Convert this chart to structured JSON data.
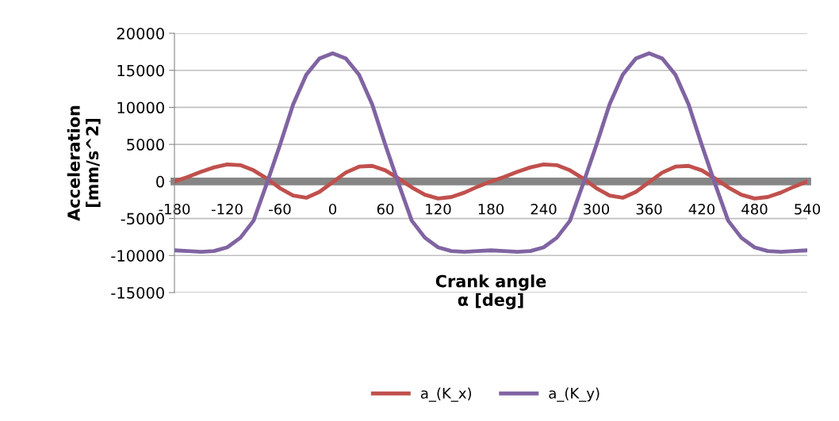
{
  "chart_data": {
    "type": "line",
    "xlabel": "Crank angle\nα [deg]",
    "ylabel": "Acceleration\n[mm/s^2]",
    "x": [
      -180,
      -165,
      -150,
      -135,
      -120,
      -105,
      -90,
      -75,
      -60,
      -45,
      -30,
      -15,
      0,
      15,
      30,
      45,
      60,
      75,
      90,
      105,
      120,
      135,
      150,
      165,
      180,
      195,
      210,
      225,
      240,
      255,
      270,
      285,
      300,
      315,
      330,
      345,
      360,
      375,
      390,
      405,
      420,
      435,
      450,
      465,
      480,
      495,
      510,
      525,
      540
    ],
    "series": [
      {
        "name": "a_(K_x)",
        "color": "#c0504d",
        "values": [
          0,
          600,
          1300,
          1900,
          2300,
          2200,
          1500,
          400,
          -900,
          -1900,
          -2200,
          -1400,
          -100,
          1200,
          2000,
          2100,
          1500,
          400,
          -800,
          -1800,
          -2300,
          -2100,
          -1500,
          -700,
          0,
          600,
          1300,
          1900,
          2300,
          2200,
          1500,
          400,
          -900,
          -1900,
          -2200,
          -1400,
          -100,
          1200,
          2000,
          2100,
          1500,
          400,
          -800,
          -1800,
          -2300,
          -2100,
          -1500,
          -700,
          0
        ]
      },
      {
        "name": "a_(K_y)",
        "color": "#8064a2",
        "values": [
          -9300,
          -9400,
          -9500,
          -9400,
          -8900,
          -7600,
          -5300,
          -300,
          4900,
          10400,
          14400,
          16600,
          17300,
          16600,
          14400,
          10400,
          4900,
          -300,
          -5300,
          -7600,
          -8900,
          -9400,
          -9500,
          -9400,
          -9300,
          -9400,
          -9500,
          -9400,
          -8900,
          -7600,
          -5300,
          -300,
          4900,
          10400,
          14400,
          16600,
          17300,
          16600,
          14400,
          10400,
          4900,
          -300,
          -5300,
          -7600,
          -8900,
          -9400,
          -9500,
          -9400,
          -9300
        ]
      }
    ],
    "xlim": [
      -180,
      540
    ],
    "xticks": [
      -180,
      -120,
      -60,
      0,
      60,
      120,
      180,
      240,
      300,
      360,
      420,
      480,
      540
    ],
    "ylim": [
      -15000,
      20000
    ],
    "yticks": [
      -15000,
      -10000,
      -5000,
      0,
      5000,
      10000,
      15000,
      20000
    ],
    "grid": "y",
    "legend": "bottom",
    "marker": "none",
    "line_style": "solid"
  }
}
